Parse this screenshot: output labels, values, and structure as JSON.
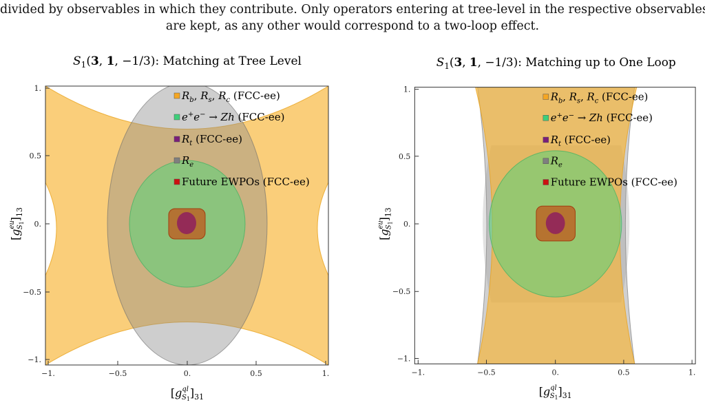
{
  "caption": {
    "line1": "divided by observables in which they contribute. Only operators entering at tree-level in the respective observables",
    "line2": "are kept, as any other would correspond to a two-loop effect."
  },
  "chart_data": [
    {
      "type": "region",
      "title": "S₁(3, 1, −1/3): Matching at Tree Level",
      "xlabel": "[g^{ql}_{S₁}]₃₁",
      "ylabel": "[g^{eu}_{S₁}]₁₃",
      "xlim": [
        -1.0,
        1.0
      ],
      "ylim": [
        -1.0,
        1.0
      ],
      "xticks": [
        "−1.",
        "−0.5",
        "0.",
        "0.5",
        "1."
      ],
      "yticks": [
        "1.",
        "0.5",
        "0.",
        "−0.5",
        "−1."
      ],
      "legend_position": "top-right",
      "legend": [
        {
          "label": "R_b, R_s, R_c (FCC-ee)",
          "color": "#f5a623"
        },
        {
          "label": "e⁺e⁻ → Zh (FCC-ee)",
          "color": "#3ecf7a"
        },
        {
          "label": "R_t (FCC-ee)",
          "color": "#7a1f7a"
        },
        {
          "label": "R_e",
          "color": "#7f7f7f"
        },
        {
          "label": "Future EWPOs (FCC-ee)",
          "color": "#cc1111"
        }
      ],
      "regions": {
        "Rb_Rs_Rc": {
          "shape": "hourglass",
          "waist_y_at_x0": 0.75,
          "half_width_at_y0": 0.97
        },
        "Zh_ellipse": {
          "center": [
            0,
            0
          ],
          "rx": 0.42,
          "ry": 0.45
        },
        "Re_ellipse": {
          "center": [
            0,
            0
          ],
          "rx": 0.58,
          "ry": 1.02
        },
        "EWPO_square": {
          "center": [
            0,
            0
          ],
          "half_width": 0.13
        },
        "Rt_ellipse": {
          "center": [
            0,
            0
          ],
          "rx": 0.07,
          "ry": 0.08
        }
      }
    },
    {
      "type": "region",
      "title": "S₁(3, 1, −1/3): Matching up to One Loop",
      "xlabel": "[g^{ql}_{S₁}]₃₁",
      "ylabel": "[g^{eu}_{S₁}]₁₃",
      "xlim": [
        -1.0,
        1.0
      ],
      "ylim": [
        -1.0,
        1.0
      ],
      "xticks": [
        "−1.",
        "−0.5",
        "0.",
        "0.5",
        "1."
      ],
      "yticks": [
        "1.",
        "0.5",
        "0.",
        "−0.5",
        "−1."
      ],
      "legend_position": "top-right",
      "legend": [
        {
          "label": "R_b, R_s, R_c (FCC-ee)",
          "color": "#f5a623"
        },
        {
          "label": "e⁺e⁻ → Zh (FCC-ee)",
          "color": "#3ecf7a"
        },
        {
          "label": "R_t (FCC-ee)",
          "color": "#7a1f7a"
        },
        {
          "label": "R_e",
          "color": "#7f7f7f"
        },
        {
          "label": "Future EWPOs (FCC-ee)",
          "color": "#cc1111"
        }
      ],
      "regions": {
        "Rb_Rs_Rc": {
          "shape": "vertical-band",
          "half_width_at_y0": 0.44,
          "half_width_at_edges": 0.58
        },
        "Zh_ellipse": {
          "center": [
            0,
            0
          ],
          "rx": 0.48,
          "ry": 0.53
        },
        "Re_band": {
          "shape": "bulged-band",
          "half_width_at_y0": 0.53
        },
        "EWPO_square": {
          "center": [
            0,
            0
          ],
          "half_width": 0.14
        },
        "Rt_ellipse": {
          "center": [
            0,
            0
          ],
          "rx": 0.07,
          "ry": 0.08
        }
      }
    }
  ]
}
